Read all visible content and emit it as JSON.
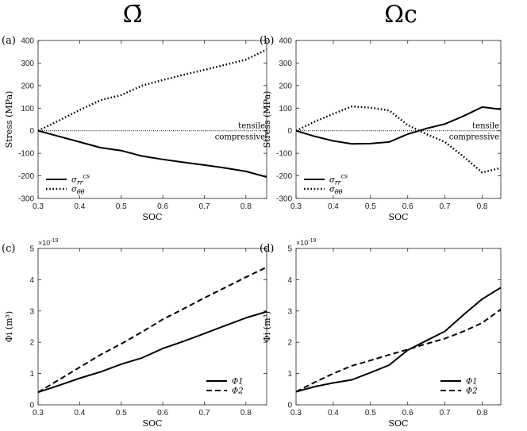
{
  "column_titles": [
    "Ω̄",
    "Ωc"
  ],
  "chart_data": [
    {
      "panel": "(a)",
      "type": "line",
      "xlabel": "SOC",
      "ylabel": "Stress (MPa)",
      "xlim": [
        0.3,
        0.85
      ],
      "ylim": [
        -300,
        400
      ],
      "xticks": [
        "0.3",
        "0.4",
        "0.5",
        "0.6",
        "0.7",
        "0.8"
      ],
      "xtick_values": [
        0.3,
        0.4,
        0.5,
        0.6,
        0.7,
        0.8
      ],
      "yticks": [
        "-300",
        "-200",
        "-100",
        "0",
        "100",
        "200",
        "300",
        "400"
      ],
      "ytick_values": [
        -300,
        -200,
        -100,
        0,
        100,
        200,
        300,
        400
      ],
      "exponent": "",
      "zero_line": true,
      "annotations": [
        "tensile",
        "compressive"
      ],
      "legend_position": "bottom-left",
      "series": [
        {
          "name": "σ_rr^cs",
          "style": "solid",
          "x": [
            0.3,
            0.35,
            0.4,
            0.45,
            0.5,
            0.55,
            0.6,
            0.65,
            0.7,
            0.75,
            0.8,
            0.85
          ],
          "y": [
            0,
            -25,
            -50,
            -75,
            -88,
            -112,
            -127,
            -140,
            -152,
            -165,
            -180,
            -205
          ]
        },
        {
          "name": "σ_θθ",
          "style": "dotted",
          "x": [
            0.3,
            0.35,
            0.4,
            0.45,
            0.5,
            0.55,
            0.6,
            0.65,
            0.7,
            0.75,
            0.8,
            0.85
          ],
          "y": [
            0,
            45,
            92,
            135,
            158,
            200,
            225,
            248,
            270,
            292,
            315,
            360
          ]
        }
      ]
    },
    {
      "panel": "(b)",
      "type": "line",
      "xlabel": "SOC",
      "ylabel": "Stress (MPa)",
      "xlim": [
        0.3,
        0.85
      ],
      "ylim": [
        -300,
        400
      ],
      "xticks": [
        "0.3",
        "0.4",
        "0.5",
        "0.6",
        "0.7",
        "0.8"
      ],
      "xtick_values": [
        0.3,
        0.4,
        0.5,
        0.6,
        0.7,
        0.8
      ],
      "yticks": [
        "-300",
        "-200",
        "-100",
        "0",
        "100",
        "200",
        "300",
        "400"
      ],
      "ytick_values": [
        -300,
        -200,
        -100,
        0,
        100,
        200,
        300,
        400
      ],
      "exponent": "",
      "zero_line": true,
      "annotations": [
        "tensile",
        "compressive"
      ],
      "legend_position": "bottom-left",
      "series": [
        {
          "name": "σ_rr^cs",
          "style": "solid",
          "x": [
            0.3,
            0.35,
            0.4,
            0.45,
            0.5,
            0.55,
            0.6,
            0.65,
            0.7,
            0.75,
            0.8,
            0.85
          ],
          "y": [
            0,
            -25,
            -45,
            -58,
            -57,
            -50,
            -15,
            10,
            30,
            65,
            105,
            95
          ]
        },
        {
          "name": "σ_θθ",
          "style": "dotted",
          "x": [
            0.3,
            0.35,
            0.4,
            0.45,
            0.5,
            0.55,
            0.6,
            0.65,
            0.7,
            0.75,
            0.8,
            0.85
          ],
          "y": [
            0,
            40,
            75,
            108,
            102,
            90,
            25,
            -15,
            -50,
            -115,
            -185,
            -165
          ]
        }
      ]
    },
    {
      "panel": "(c)",
      "type": "line",
      "xlabel": "SOC",
      "ylabel": "Φi (m³)",
      "xlim": [
        0.3,
        0.85
      ],
      "ylim": [
        0,
        5
      ],
      "xticks": [
        "0.3",
        "0.4",
        "0.5",
        "0.6",
        "0.7",
        "0.8"
      ],
      "xtick_values": [
        0.3,
        0.4,
        0.5,
        0.6,
        0.7,
        0.8
      ],
      "yticks": [
        "0",
        "1",
        "2",
        "3",
        "4",
        "5"
      ],
      "ytick_values": [
        0,
        1,
        2,
        3,
        4,
        5
      ],
      "exponent": "×10-19",
      "zero_line": false,
      "annotations": [],
      "legend_position": "bottom-right",
      "series": [
        {
          "name": "Φ1",
          "style": "solid",
          "x": [
            0.3,
            0.35,
            0.4,
            0.45,
            0.5,
            0.55,
            0.6,
            0.65,
            0.7,
            0.75,
            0.8,
            0.85
          ],
          "y": [
            0.4,
            0.62,
            0.85,
            1.05,
            1.3,
            1.5,
            1.8,
            2.03,
            2.28,
            2.53,
            2.78,
            2.98
          ]
        },
        {
          "name": "Φ2",
          "style": "dashed",
          "x": [
            0.3,
            0.35,
            0.4,
            0.45,
            0.5,
            0.55,
            0.6,
            0.65,
            0.7,
            0.75,
            0.8,
            0.85
          ],
          "y": [
            0.4,
            0.8,
            1.2,
            1.6,
            1.95,
            2.33,
            2.73,
            3.07,
            3.42,
            3.75,
            4.08,
            4.4
          ]
        }
      ]
    },
    {
      "panel": "(d)",
      "type": "line",
      "xlabel": "SOC",
      "ylabel": "Φi (m³)",
      "xlim": [
        0.3,
        0.85
      ],
      "ylim": [
        0,
        5
      ],
      "xticks": [
        "0.3",
        "0.4",
        "0.5",
        "0.6",
        "0.7",
        "0.8"
      ],
      "xtick_values": [
        0.3,
        0.4,
        0.5,
        0.6,
        0.7,
        0.8
      ],
      "yticks": [
        "0",
        "1",
        "2",
        "3",
        "4",
        "5"
      ],
      "ytick_values": [
        0,
        1,
        2,
        3,
        4,
        5
      ],
      "exponent": "×10-19",
      "zero_line": false,
      "annotations": [],
      "legend_position": "bottom-right",
      "series": [
        {
          "name": "Φ1",
          "style": "solid",
          "x": [
            0.3,
            0.35,
            0.4,
            0.45,
            0.5,
            0.55,
            0.6,
            0.65,
            0.7,
            0.75,
            0.8,
            0.85
          ],
          "y": [
            0.42,
            0.58,
            0.7,
            0.8,
            1.03,
            1.27,
            1.75,
            2.05,
            2.35,
            2.88,
            3.38,
            3.75
          ]
        },
        {
          "name": "Φ2",
          "style": "dashed",
          "x": [
            0.3,
            0.35,
            0.4,
            0.45,
            0.5,
            0.55,
            0.6,
            0.65,
            0.7,
            0.75,
            0.8,
            0.85
          ],
          "y": [
            0.42,
            0.72,
            1.0,
            1.25,
            1.42,
            1.6,
            1.77,
            1.95,
            2.12,
            2.35,
            2.62,
            3.05
          ]
        }
      ]
    }
  ]
}
